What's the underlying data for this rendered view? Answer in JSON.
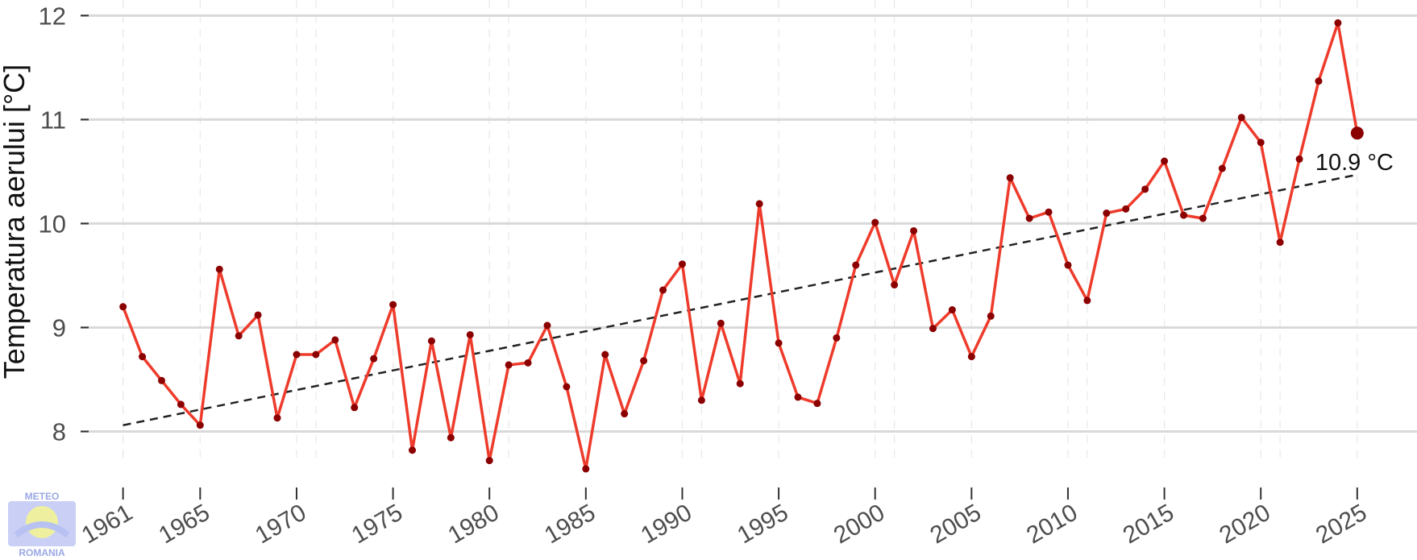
{
  "chart_data": {
    "type": "line",
    "ylabel": "Temperatura aerului [°C]",
    "xlabel": "",
    "title": "",
    "ylim": [
      7.5,
      12.15
    ],
    "xlim": [
      1958.8,
      2028.1
    ],
    "yticks": [
      8,
      9,
      10,
      11,
      12
    ],
    "xticks": [
      1961,
      1965,
      1970,
      1975,
      1980,
      1985,
      1990,
      1995,
      2000,
      2005,
      2010,
      2015,
      2020,
      2025
    ],
    "minor_x_gridlines": [
      1961,
      1971,
      1981,
      1991,
      2001,
      2011,
      2021
    ],
    "grid": true,
    "series": [
      {
        "x": [
          1961,
          1962,
          1963,
          1964,
          1965,
          1966,
          1967,
          1968,
          1969,
          1970,
          1971,
          1972,
          1973,
          1974,
          1975,
          1976,
          1977,
          1978,
          1979,
          1980,
          1981,
          1982,
          1983,
          1984,
          1985,
          1986,
          1987,
          1988,
          1989,
          1990,
          1991,
          1992,
          1993,
          1994,
          1995,
          1996,
          1997,
          1998,
          1999,
          2000,
          2001,
          2002,
          2003,
          2004,
          2005,
          2006,
          2007,
          2008,
          2009,
          2010,
          2011,
          2012,
          2013,
          2014,
          2015,
          2016,
          2017,
          2018,
          2019,
          2020,
          2021,
          2022,
          2023,
          2024,
          2025
        ],
        "values": [
          9.2,
          8.72,
          8.49,
          8.26,
          8.06,
          9.56,
          8.92,
          9.12,
          8.13,
          8.74,
          8.74,
          8.88,
          8.23,
          8.7,
          9.22,
          7.82,
          8.87,
          7.94,
          8.93,
          7.72,
          8.64,
          8.66,
          9.02,
          8.43,
          7.64,
          8.74,
          8.17,
          8.68,
          9.36,
          9.61,
          8.3,
          9.04,
          8.46,
          10.19,
          8.85,
          8.33,
          8.27,
          8.9,
          9.6,
          10.01,
          9.41,
          9.93,
          8.99,
          9.17,
          8.72,
          9.11,
          10.44,
          10.05,
          10.11,
          9.6,
          9.26,
          10.1,
          10.14,
          10.33,
          10.6,
          10.08,
          10.05,
          10.53,
          11.02,
          10.78,
          9.82,
          10.62,
          11.37,
          11.93,
          10.87
        ]
      }
    ],
    "trend": {
      "x": [
        1961,
        2025
      ],
      "y": [
        8.06,
        10.47
      ]
    },
    "colors": {
      "line": "#ee3b2b",
      "points": "#8b0000",
      "trend": "#222222",
      "grid": "#d9d9d9",
      "minor_grid": "#e8e8e8"
    },
    "annotation": {
      "text": "10.9 °C",
      "x": 2025,
      "y": 10.87
    }
  },
  "logo": {
    "top": "METEO",
    "bottom": "ROMANIA"
  }
}
